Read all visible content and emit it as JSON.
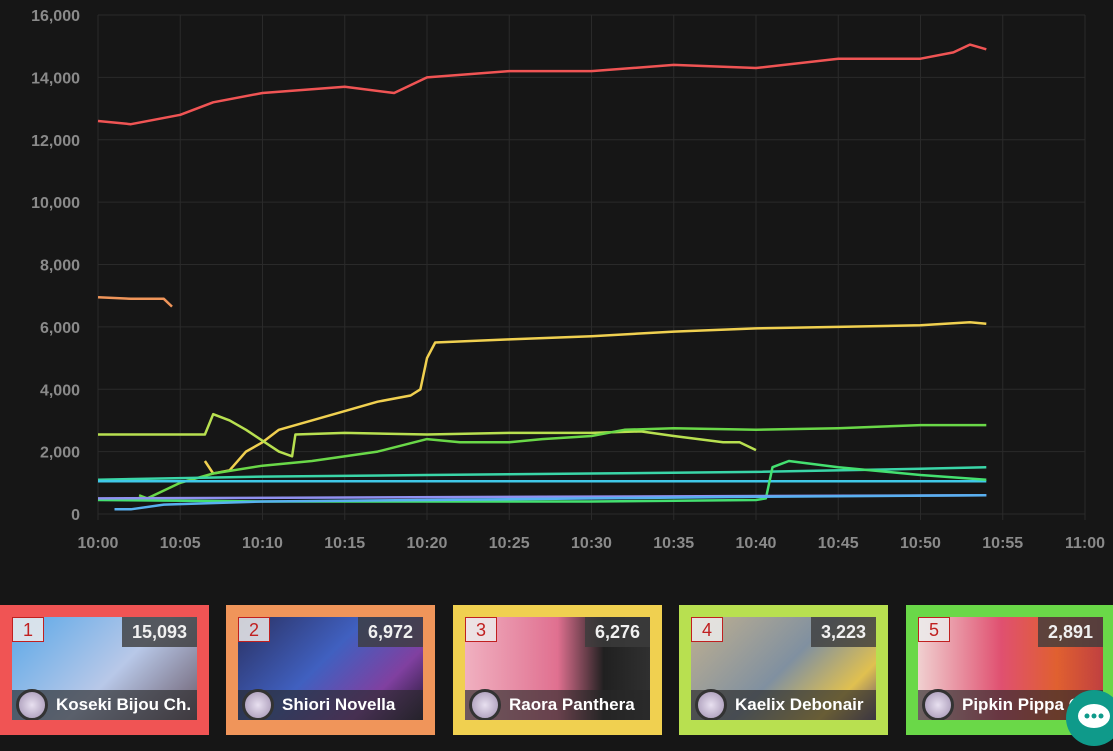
{
  "chart_data": {
    "type": "line",
    "ylim": [
      0,
      16000
    ],
    "yticks": [
      "0",
      "2,000",
      "4,000",
      "6,000",
      "8,000",
      "10,000",
      "12,000",
      "14,000",
      "16,000"
    ],
    "ytick_values": [
      0,
      2000,
      4000,
      6000,
      8000,
      10000,
      12000,
      14000,
      16000
    ],
    "xticks": [
      "10:00",
      "10:05",
      "10:10",
      "10:15",
      "10:20",
      "10:25",
      "10:30",
      "10:35",
      "10:40",
      "10:45",
      "10:50",
      "10:55",
      "11:00"
    ],
    "xlim": [
      "10:00",
      "11:00"
    ],
    "grid": true,
    "series": [
      {
        "color": "#f05454",
        "points": [
          [
            "10:00",
            12600
          ],
          [
            "10:02",
            12500
          ],
          [
            "10:05",
            12800
          ],
          [
            "10:07",
            13200
          ],
          [
            "10:10",
            13500
          ],
          [
            "10:15",
            13700
          ],
          [
            "10:18",
            13500
          ],
          [
            "10:20",
            14000
          ],
          [
            "10:25",
            14200
          ],
          [
            "10:30",
            14200
          ],
          [
            "10:35",
            14400
          ],
          [
            "10:40",
            14300
          ],
          [
            "10:45",
            14600
          ],
          [
            "10:50",
            14600
          ],
          [
            "10:52",
            14800
          ],
          [
            "10:53",
            15050
          ],
          [
            "10:54",
            14900
          ]
        ]
      },
      {
        "color": "#f0955a",
        "points": [
          [
            "10:00",
            6950
          ],
          [
            "10:02",
            6900
          ],
          [
            "10:04",
            6900
          ],
          [
            "10:04.5",
            6650
          ]
        ]
      },
      {
        "color": "#f0d050",
        "points": [
          [
            "10:06.5",
            1700
          ],
          [
            "10:07",
            1300
          ],
          [
            "10:08",
            1400
          ],
          [
            "10:09",
            2000
          ],
          [
            "10:10",
            2300
          ],
          [
            "10:11",
            2700
          ],
          [
            "10:13",
            3000
          ],
          [
            "10:15",
            3300
          ],
          [
            "10:17",
            3600
          ],
          [
            "10:19",
            3800
          ],
          [
            "10:19.6",
            4000
          ],
          [
            "10:20",
            5000
          ],
          [
            "10:20.5",
            5500
          ],
          [
            "10:25",
            5600
          ],
          [
            "10:30",
            5700
          ],
          [
            "10:35",
            5850
          ],
          [
            "10:40",
            5950
          ],
          [
            "10:45",
            6000
          ],
          [
            "10:50",
            6050
          ],
          [
            "10:53",
            6150
          ],
          [
            "10:54",
            6100
          ]
        ]
      },
      {
        "color": "#b8e050",
        "points": [
          [
            "10:00",
            2550
          ],
          [
            "10:06.5",
            2550
          ],
          [
            "10:07",
            3200
          ],
          [
            "10:08",
            3000
          ],
          [
            "10:09",
            2700
          ],
          [
            "10:11",
            2000
          ],
          [
            "10:11.8",
            1850
          ],
          [
            "10:12",
            2550
          ],
          [
            "10:15",
            2600
          ],
          [
            "10:20",
            2550
          ],
          [
            "10:25",
            2600
          ],
          [
            "10:30",
            2600
          ],
          [
            "10:33",
            2650
          ],
          [
            "10:35",
            2500
          ],
          [
            "10:38",
            2300
          ],
          [
            "10:39",
            2300
          ],
          [
            "10:40",
            2050
          ]
        ]
      },
      {
        "color": "#6ad848",
        "points": [
          [
            "10:02.5",
            600
          ],
          [
            "10:03",
            500
          ],
          [
            "10:05",
            1000
          ],
          [
            "10:07",
            1300
          ],
          [
            "10:10",
            1550
          ],
          [
            "10:13",
            1700
          ],
          [
            "10:17",
            2000
          ],
          [
            "10:20",
            2400
          ],
          [
            "10:22",
            2300
          ],
          [
            "10:25",
            2300
          ],
          [
            "10:27",
            2400
          ],
          [
            "10:30",
            2500
          ],
          [
            "10:32",
            2700
          ],
          [
            "10:35",
            2750
          ],
          [
            "10:40",
            2700
          ],
          [
            "10:45",
            2750
          ],
          [
            "10:50",
            2850
          ],
          [
            "10:54",
            2850
          ]
        ]
      },
      {
        "color": "#3ad6a8",
        "points": [
          [
            "10:00",
            1100
          ],
          [
            "10:10",
            1200
          ],
          [
            "10:20",
            1250
          ],
          [
            "10:30",
            1300
          ],
          [
            "10:40",
            1350
          ],
          [
            "10:50",
            1450
          ],
          [
            "10:54",
            1500
          ]
        ]
      },
      {
        "color": "#40c8e8",
        "points": [
          [
            "10:00",
            1050
          ],
          [
            "10:20",
            1050
          ],
          [
            "10:40",
            1050
          ],
          [
            "10:54",
            1050
          ]
        ]
      },
      {
        "color": "#44e070",
        "points": [
          [
            "10:00",
            450
          ],
          [
            "10:10",
            400
          ],
          [
            "10:20",
            400
          ],
          [
            "10:30",
            400
          ],
          [
            "10:40",
            450
          ],
          [
            "10:40.6",
            500
          ],
          [
            "10:41",
            1500
          ],
          [
            "10:42",
            1700
          ],
          [
            "10:45",
            1500
          ],
          [
            "10:50",
            1250
          ],
          [
            "10:54",
            1100
          ]
        ]
      },
      {
        "color": "#9090f0",
        "points": [
          [
            "10:00",
            500
          ],
          [
            "10:27",
            550
          ],
          [
            "10:54",
            600
          ]
        ]
      },
      {
        "color": "#58b0f0",
        "points": [
          [
            "10:01",
            150
          ],
          [
            "10:02",
            150
          ],
          [
            "10:04",
            300
          ],
          [
            "10:10",
            400
          ],
          [
            "10:20",
            450
          ],
          [
            "10:30",
            500
          ],
          [
            "10:40",
            550
          ],
          [
            "10:54",
            600
          ]
        ]
      }
    ]
  },
  "ranking": [
    {
      "rank": "1",
      "count": "15,093",
      "name": "Koseki Bijou Ch.",
      "color": "#f05454",
      "thumb": "linear-gradient(135deg,#5aa8e8,#b8c8e8 55%,#6a5a6a)"
    },
    {
      "rank": "2",
      "count": "6,972",
      "name": "Shiori Novella",
      "color": "#f0955a",
      "thumb": "linear-gradient(135deg,#2a3060,#4060c0 45%,#8040a0 75%,#201830)"
    },
    {
      "rank": "3",
      "count": "6,276",
      "name": "Raora Panthera",
      "color": "#f0d050",
      "thumb": "linear-gradient(90deg,#f0b0c0,#e07090 50%,#202020 75%,#303030)"
    },
    {
      "rank": "4",
      "count": "3,223",
      "name": "Kaelix Debonair",
      "color": "#b8e050",
      "thumb": "linear-gradient(135deg,#c0b090,#8090a0 50%,#e0c050 80%,#605070)"
    },
    {
      "rank": "5",
      "count": "2,891",
      "name": "Pipkin Pippa C",
      "color": "#6ad848",
      "thumb": "linear-gradient(90deg,#f0d0d0,#e05070 45%,#e06030 75%,#c04040)"
    }
  ]
}
